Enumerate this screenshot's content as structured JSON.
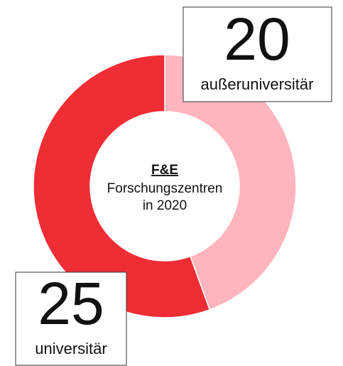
{
  "chart_data": {
    "type": "donut",
    "title": "F&E",
    "subtitle": [
      "Forschungszentren",
      "in 2020"
    ],
    "categories": [
      "außeruniversitär",
      "universitär"
    ],
    "values": [
      20,
      25
    ],
    "colors": [
      "#ffb5bd",
      "#ee2d35"
    ]
  }
}
